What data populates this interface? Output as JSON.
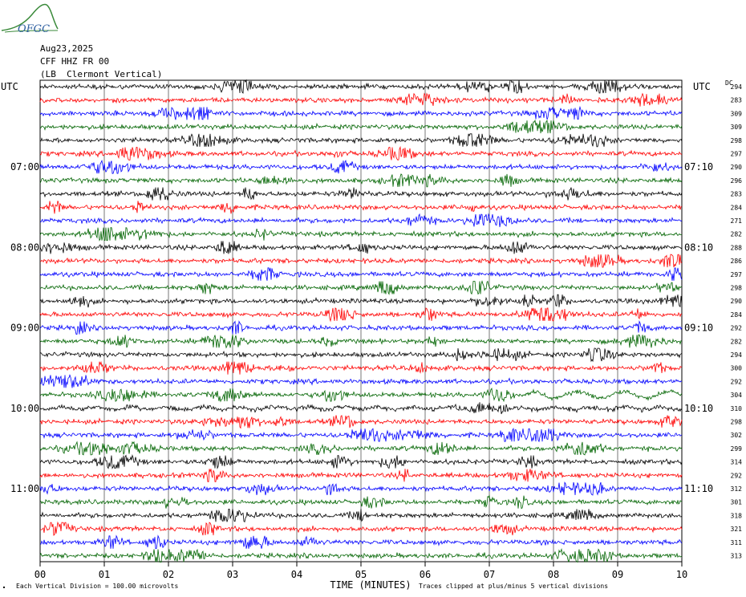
{
  "logo": {
    "text": "OFGC",
    "color": "#2e7d32"
  },
  "header": {
    "date": "Aug23,2025",
    "station": "CFF HHZ FR 00",
    "location": "(LB  Clermont Vertical)"
  },
  "labels": {
    "utc_left": "UTC",
    "utc_right": "UTC",
    "dc": "DC",
    "xlabel": "TIME (MINUTES)",
    "footer_left": "Each Vertical Division =  100.00 microvolts",
    "footer_right": "Traces clipped at plus/minus 5 vertical divisions"
  },
  "chart_data": {
    "type": "line",
    "title": "",
    "xlabel": "TIME (MINUTES)",
    "xlim": [
      0,
      10
    ],
    "x_ticks": [
      "00",
      "01",
      "02",
      "03",
      "04",
      "05",
      "06",
      "07",
      "08",
      "09",
      "10"
    ],
    "trace_colors": [
      "#000000",
      "#ff0000",
      "#0000ff",
      "#006400"
    ],
    "left_hour_labels": [
      {
        "trace": 0,
        "label": "UTC"
      },
      {
        "trace": 6,
        "label": "07:00"
      },
      {
        "trace": 12,
        "label": "08:00"
      },
      {
        "trace": 18,
        "label": "09:00"
      },
      {
        "trace": 24,
        "label": "10:00"
      },
      {
        "trace": 30,
        "label": "11:00"
      }
    ],
    "right_hour_labels": [
      {
        "trace": 0,
        "label": "UTC"
      },
      {
        "trace": 6,
        "label": "07:10"
      },
      {
        "trace": 12,
        "label": "08:10"
      },
      {
        "trace": 18,
        "label": "09:10"
      },
      {
        "trace": 24,
        "label": "10:10"
      },
      {
        "trace": 30,
        "label": "11:10"
      }
    ],
    "dc_offsets": [
      294,
      283,
      309,
      309,
      298,
      297,
      290,
      296,
      283,
      284,
      271,
      282,
      288,
      286,
      297,
      298,
      290,
      284,
      292,
      282,
      294,
      300,
      292,
      304,
      310,
      298,
      302,
      299,
      314,
      292,
      312,
      301,
      318,
      321,
      311,
      313
    ]
  }
}
